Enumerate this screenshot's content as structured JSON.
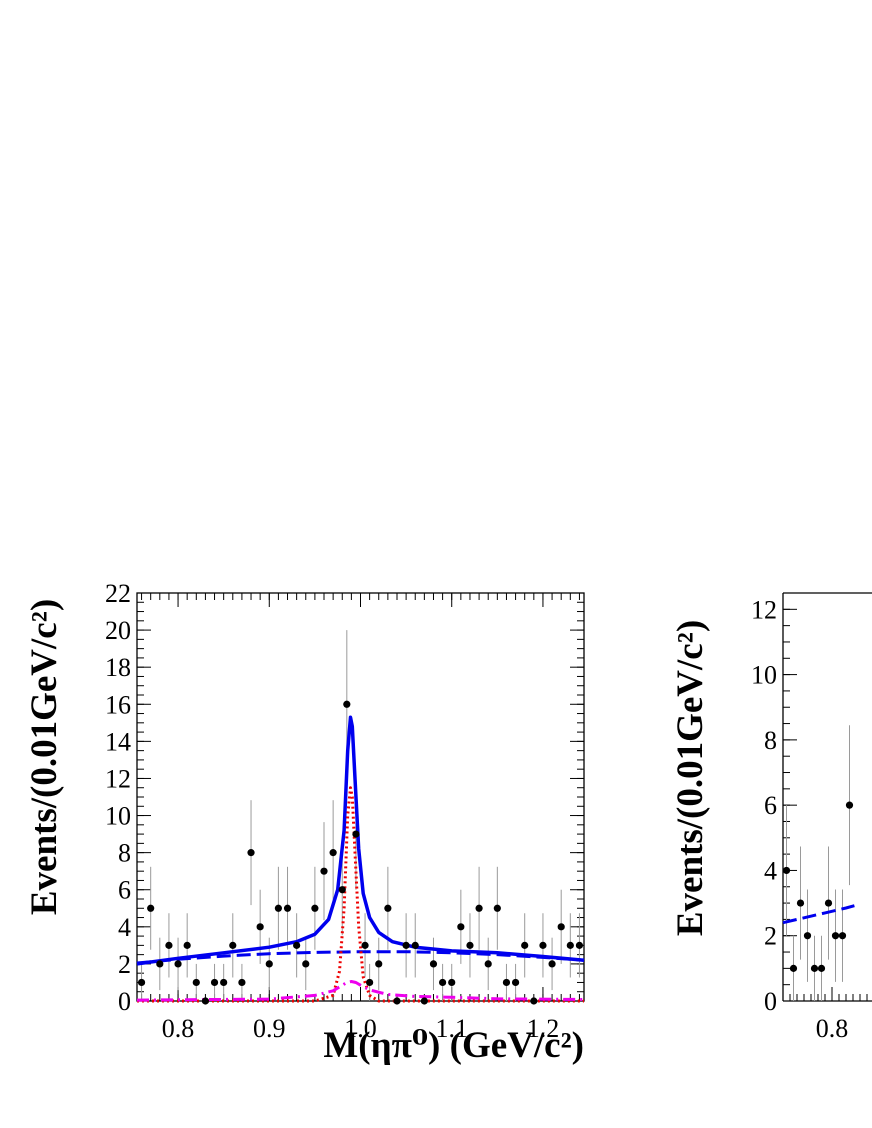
{
  "chart_data": [
    {
      "type": "scatter",
      "ylabel": "Events/(0.01GeV/c²)",
      "xlabel": "M(ηπ⁰) (GeV/c²)",
      "xlim": [
        0.755,
        1.245
      ],
      "ylim": [
        0,
        22
      ],
      "xticks": [
        "0.8",
        "0.9",
        "1.0",
        "1.1",
        "1.2"
      ],
      "yticks": [
        "0",
        "2",
        "4",
        "6",
        "8",
        "10",
        "12",
        "14",
        "16",
        "18",
        "20",
        "22"
      ],
      "points": {
        "x": [
          0.76,
          0.77,
          0.78,
          0.79,
          0.8,
          0.81,
          0.82,
          0.83,
          0.84,
          0.85,
          0.86,
          0.87,
          0.88,
          0.89,
          0.9,
          0.91,
          0.92,
          0.93,
          0.94,
          0.95,
          0.96,
          0.97,
          0.98,
          0.985,
          0.995,
          1.005,
          1.01,
          1.02,
          1.03,
          1.04,
          1.05,
          1.06,
          1.07,
          1.08,
          1.09,
          1.1,
          1.11,
          1.12,
          1.13,
          1.14,
          1.15,
          1.16,
          1.17,
          1.18,
          1.19,
          1.2,
          1.21,
          1.22,
          1.23,
          1.24
        ],
        "y": [
          1,
          5,
          2,
          3,
          2,
          3,
          1,
          0,
          1,
          1,
          3,
          1,
          8,
          4,
          2,
          5,
          5,
          3,
          2,
          5,
          7,
          8,
          6,
          16,
          9,
          3,
          1,
          2,
          5,
          0,
          3,
          3,
          0,
          2,
          1,
          1,
          4,
          3,
          5,
          2,
          5,
          1,
          1,
          3,
          0,
          3,
          2,
          4,
          3,
          3
        ]
      },
      "series": [
        {
          "name": "",
          "style": "solid",
          "color": "#0000ee",
          "x": [
            0.755,
            0.8,
            0.85,
            0.9,
            0.93,
            0.95,
            0.965,
            0.975,
            0.982,
            0.986,
            0.989,
            0.991,
            0.994,
            0.998,
            1.003,
            1.01,
            1.02,
            1.035,
            1.06,
            1.1,
            1.15,
            1.2,
            1.245
          ],
          "y": [
            2.0,
            2.3,
            2.6,
            2.9,
            3.2,
            3.6,
            4.4,
            6.0,
            9.2,
            13.5,
            15.3,
            14.8,
            12.0,
            8.2,
            5.8,
            4.5,
            3.7,
            3.2,
            2.9,
            2.7,
            2.6,
            2.4,
            2.2
          ]
        },
        {
          "name": "",
          "style": "dashed",
          "color": "#0000ee",
          "x": [
            0.755,
            0.8,
            0.85,
            0.9,
            0.95,
            1.0,
            1.05,
            1.1,
            1.15,
            1.2,
            1.245
          ],
          "y": [
            2.05,
            2.25,
            2.42,
            2.55,
            2.62,
            2.66,
            2.66,
            2.6,
            2.5,
            2.35,
            2.2
          ]
        },
        {
          "name": "",
          "style": "dotted",
          "color": "#ee0000",
          "x": [
            0.755,
            0.95,
            0.97,
            0.977,
            0.982,
            0.986,
            0.989,
            0.991,
            0.994,
            0.998,
            1.003,
            1.01,
            1.02,
            1.245
          ],
          "y": [
            0,
            0,
            0.3,
            1.6,
            5.0,
            10.0,
            11.5,
            11.0,
            8.0,
            4.0,
            1.3,
            0.3,
            0,
            0
          ]
        },
        {
          "name": "",
          "style": "dashdot",
          "color": "#ee00ee",
          "x": [
            0.755,
            0.9,
            0.95,
            0.97,
            0.98,
            0.985,
            0.99,
            0.995,
            1.0,
            1.01,
            1.03,
            1.06,
            1.1,
            1.15,
            1.245
          ],
          "y": [
            0.05,
            0.1,
            0.3,
            0.55,
            0.85,
            1.0,
            1.05,
            1.0,
            0.85,
            0.6,
            0.35,
            0.25,
            0.2,
            0.12,
            0.08
          ]
        }
      ]
    },
    {
      "type": "scatter",
      "ylabel": "Events/(0.01GeV/c²)",
      "xlabel": "",
      "xlim": [
        0.73,
        1.5
      ],
      "ylim": [
        0,
        12.5
      ],
      "xticks": [
        "0.8"
      ],
      "yticks": [
        "0",
        "2",
        "4",
        "6",
        "8",
        "10",
        "12"
      ],
      "points": {
        "x": [
          0.735,
          0.745,
          0.755,
          0.765,
          0.775,
          0.785,
          0.795,
          0.805,
          0.815,
          0.825
        ],
        "y": [
          4,
          1,
          3,
          2,
          1,
          1,
          3,
          2,
          2,
          6
        ]
      },
      "series": [
        {
          "name": "",
          "style": "dashed",
          "color": "#0000ee",
          "x": [
            0.73,
            0.76,
            0.79,
            0.82,
            0.832
          ],
          "y": [
            2.4,
            2.55,
            2.7,
            2.85,
            2.92
          ]
        }
      ]
    }
  ]
}
